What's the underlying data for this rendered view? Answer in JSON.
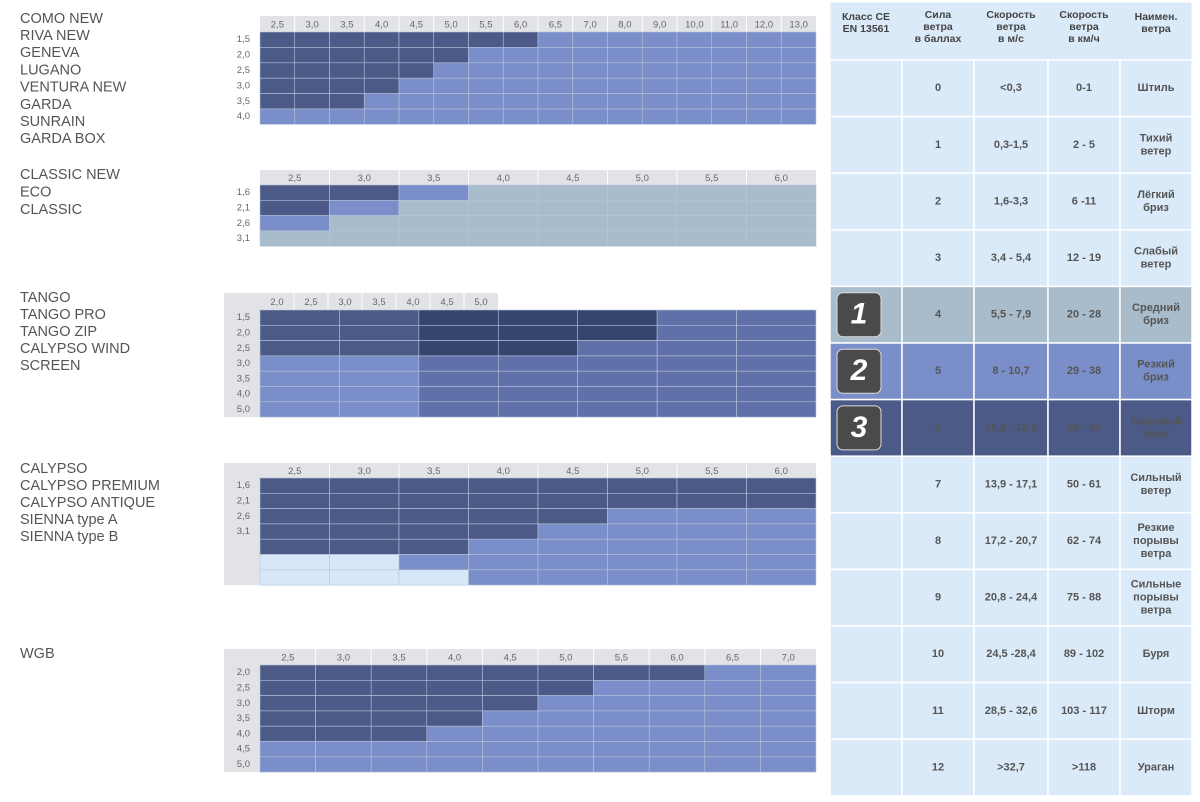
{
  "grids": [
    {
      "names": [
        "COMO NEW",
        "RIVA NEW",
        "GENEVA",
        "LUGANO",
        "VENTURA NEW",
        "GARDA",
        "SUNRAIN",
        "GARDA BOX"
      ],
      "columns": [
        "2,5",
        "3,0",
        "3,5",
        "4,0",
        "4,5",
        "5,0",
        "5,5",
        "6,0",
        "6,5",
        "7,0",
        "8,0",
        "9,0",
        "10,0",
        "11,0",
        "12,0",
        "13,0"
      ],
      "rows": [
        "1,5",
        "2,0",
        "2,5",
        "3,0",
        "3,5",
        "4,0"
      ],
      "cells": [
        [
          "#4b5a86",
          "#4b5a86",
          "#4b5a86",
          "#4b5a86",
          "#4b5a86",
          "#4b5a86",
          "#4b5a86",
          "#4b5a86",
          "#7a8fc9",
          "#7a8fc9",
          "#7a8fc9",
          "#7a8fc9",
          "#7a8fc9",
          "#7a8fc9",
          "#7a8fc9",
          "#7a8fc9"
        ],
        [
          "#4b5a86",
          "#4b5a86",
          "#4b5a86",
          "#4b5a86",
          "#4b5a86",
          "#4b5a86",
          "#7a8fc9",
          "#7a8fc9",
          "#7a8fc9",
          "#7a8fc9",
          "#7a8fc9",
          "#7a8fc9",
          "#7a8fc9",
          "#7a8fc9",
          "#7a8fc9",
          "#7a8fc9"
        ],
        [
          "#4b5a86",
          "#4b5a86",
          "#4b5a86",
          "#4b5a86",
          "#4b5a86",
          "#7a8fc9",
          "#7a8fc9",
          "#7a8fc9",
          "#7a8fc9",
          "#7a8fc9",
          "#7a8fc9",
          "#7a8fc9",
          "#7a8fc9",
          "#7a8fc9",
          "#7a8fc9",
          "#7a8fc9"
        ],
        [
          "#4b5a86",
          "#4b5a86",
          "#4b5a86",
          "#4b5a86",
          "#7a8fc9",
          "#7a8fc9",
          "#7a8fc9",
          "#7a8fc9",
          "#7a8fc9",
          "#7a8fc9",
          "#7a8fc9",
          "#7a8fc9",
          "#7a8fc9",
          "#7a8fc9",
          "#7a8fc9",
          "#7a8fc9"
        ],
        [
          "#4b5a86",
          "#4b5a86",
          "#4b5a86",
          "#7a8fc9",
          "#7a8fc9",
          "#7a8fc9",
          "#7a8fc9",
          "#7a8fc9",
          "#7a8fc9",
          "#7a8fc9",
          "#7a8fc9",
          "#7a8fc9",
          "#7a8fc9",
          "#7a8fc9",
          "#7a8fc9",
          "#7a8fc9"
        ],
        [
          "#7a8fc9",
          "#7a8fc9",
          "#7a8fc9",
          "#7a8fc9",
          "#7a8fc9",
          "#7a8fc9",
          "#7a8fc9",
          "#7a8fc9",
          "#7a8fc9",
          "#7a8fc9",
          "#7a8fc9",
          "#7a8fc9",
          "#7a8fc9",
          "#7a8fc9",
          "#7a8fc9",
          "#7a8fc9"
        ]
      ]
    },
    {
      "names": [
        "CLASSIC NEW",
        "ECO",
        "CLASSIC"
      ],
      "columns": [
        "2,5",
        "3,0",
        "3,5",
        "4,0",
        "4,5",
        "5,0",
        "5,5",
        "6,0"
      ],
      "rows": [
        "1,6",
        "2,1",
        "2,6",
        "3,1"
      ],
      "cells": [
        [
          "#4b5a86",
          "#4b5a86",
          "#7a8fc9",
          "#a9bccb",
          "#a9bccb",
          "#a9bccb",
          "#a9bccb",
          "#a9bccb"
        ],
        [
          "#4b5a86",
          "#7a8fc9",
          "#a9bccb",
          "#a9bccb",
          "#a9bccb",
          "#a9bccb",
          "#a9bccb",
          "#a9bccb"
        ],
        [
          "#7a8fc9",
          "#a9bccb",
          "#a9bccb",
          "#a9bccb",
          "#a9bccb",
          "#a9bccb",
          "#a9bccb",
          "#a9bccb"
        ],
        [
          "#a9bccb",
          "#a9bccb",
          "#a9bccb",
          "#a9bccb",
          "#a9bccb",
          "#a9bccb",
          "#a9bccb",
          "#a9bccb"
        ]
      ]
    },
    {
      "names": [
        "TANGO",
        "TANGO PRO",
        "TANGO ZIP",
        "CALYPSO WIND",
        "SCREEN"
      ],
      "columns": [
        "2,0",
        "2,5",
        "3,0",
        "3,5",
        "4,0",
        "4,5",
        "5,0"
      ],
      "rows": [
        "1,5",
        "2,0",
        "2,5",
        "3,0",
        "3,5",
        "4,0",
        "5,0"
      ],
      "cells": [
        [
          "#4b5a86",
          "#4b5a86",
          "#34456e",
          "#34456e",
          "#34456e",
          "#5f71a8",
          "#5f71a8"
        ],
        [
          "#4b5a86",
          "#4b5a86",
          "#34456e",
          "#34456e",
          "#34456e",
          "#5f71a8",
          "#5f71a8"
        ],
        [
          "#4b5a86",
          "#4b5a86",
          "#34456e",
          "#34456e",
          "#5f71a8",
          "#5f71a8",
          "#5f71a8"
        ],
        [
          "#7a8fc9",
          "#7a8fc9",
          "#5f71a8",
          "#5f71a8",
          "#5f71a8",
          "#5f71a8",
          "#5f71a8"
        ],
        [
          "#7a8fc9",
          "#7a8fc9",
          "#5f71a8",
          "#5f71a8",
          "#5f71a8",
          "#5f71a8",
          "#5f71a8"
        ],
        [
          "#7a8fc9",
          "#7a8fc9",
          "#5f71a8",
          "#5f71a8",
          "#5f71a8",
          "#5f71a8",
          "#5f71a8"
        ],
        [
          "#7a8fc9",
          "#7a8fc9",
          "#5f71a8",
          "#5f71a8",
          "#5f71a8",
          "#5f71a8",
          "#5f71a8"
        ]
      ]
    },
    {
      "names": [
        "CALYPSO",
        "CALYPSO PREMIUM",
        "CALYPSO ANTIQUE",
        "SIENNA type A",
        "SIENNA type B"
      ],
      "columns": [
        "2,5",
        "3,0",
        "3,5",
        "4,0",
        "4,5",
        "5,0",
        "5,5",
        "6,0"
      ],
      "rows": [
        "1,6",
        "2,1",
        "2,6",
        "3,1",
        null,
        null,
        null
      ],
      "cells": [
        [
          "#4b5a86",
          "#4b5a86",
          "#4b5a86",
          "#4b5a86",
          "#4b5a86",
          "#4b5a86",
          "#4b5a86",
          "#4b5a86"
        ],
        [
          "#4b5a86",
          "#4b5a86",
          "#4b5a86",
          "#4b5a86",
          "#4b5a86",
          "#4b5a86",
          "#4b5a86",
          "#4b5a86"
        ],
        [
          "#4b5a86",
          "#4b5a86",
          "#4b5a86",
          "#4b5a86",
          "#4b5a86",
          "#7a8fc9",
          "#7a8fc9",
          "#7a8fc9"
        ],
        [
          "#4b5a86",
          "#4b5a86",
          "#4b5a86",
          "#4b5a86",
          "#7a8fc9",
          "#7a8fc9",
          "#7a8fc9",
          "#7a8fc9"
        ],
        [
          "#4b5a86",
          "#4b5a86",
          "#4b5a86",
          "#7a8fc9",
          "#7a8fc9",
          "#7a8fc9",
          "#7a8fc9",
          "#7a8fc9"
        ],
        [
          "#d6e8f7",
          "#d6e8f7",
          "#7a8fc9",
          "#7a8fc9",
          "#7a8fc9",
          "#7a8fc9",
          "#7a8fc9",
          "#7a8fc9"
        ],
        [
          "#d6e8f7",
          "#d6e8f7",
          "#d6e8f7",
          "#7a8fc9",
          "#7a8fc9",
          "#7a8fc9",
          "#7a8fc9",
          "#7a8fc9"
        ]
      ]
    },
    {
      "names": [
        "WGB"
      ],
      "columns": [
        "2,5",
        "3,0",
        "3,5",
        "4,0",
        "4,5",
        "5,0",
        "5,5",
        "6,0",
        "6,5",
        "7,0"
      ],
      "rows": [
        "2,0",
        "2,5",
        "3,0",
        "3,5",
        "4,0",
        "4,5",
        "5,0"
      ],
      "cells": [
        [
          "#4b5a86",
          "#4b5a86",
          "#4b5a86",
          "#4b5a86",
          "#4b5a86",
          "#4b5a86",
          "#4b5a86",
          "#4b5a86",
          "#7a8fc9",
          "#7a8fc9"
        ],
        [
          "#4b5a86",
          "#4b5a86",
          "#4b5a86",
          "#4b5a86",
          "#4b5a86",
          "#4b5a86",
          "#7a8fc9",
          "#7a8fc9",
          "#7a8fc9",
          "#7a8fc9"
        ],
        [
          "#4b5a86",
          "#4b5a86",
          "#4b5a86",
          "#4b5a86",
          "#4b5a86",
          "#7a8fc9",
          "#7a8fc9",
          "#7a8fc9",
          "#7a8fc9",
          "#7a8fc9"
        ],
        [
          "#4b5a86",
          "#4b5a86",
          "#4b5a86",
          "#4b5a86",
          "#7a8fc9",
          "#7a8fc9",
          "#7a8fc9",
          "#7a8fc9",
          "#7a8fc9",
          "#7a8fc9"
        ],
        [
          "#4b5a86",
          "#4b5a86",
          "#4b5a86",
          "#7a8fc9",
          "#7a8fc9",
          "#7a8fc9",
          "#7a8fc9",
          "#7a8fc9",
          "#7a8fc9",
          "#7a8fc9"
        ],
        [
          "#7a8fc9",
          "#7a8fc9",
          "#7a8fc9",
          "#7a8fc9",
          "#7a8fc9",
          "#7a8fc9",
          "#7a8fc9",
          "#7a8fc9",
          "#7a8fc9",
          "#7a8fc9"
        ],
        [
          "#7a8fc9",
          "#7a8fc9",
          "#7a8fc9",
          "#7a8fc9",
          "#7a8fc9",
          "#7a8fc9",
          "#7a8fc9",
          "#7a8fc9",
          "#7a8fc9",
          "#7a8fc9"
        ]
      ]
    }
  ],
  "table": {
    "header": [
      [
        "Класс CE",
        "EN 13561"
      ],
      [
        "Сила",
        "ветра",
        "в баллах"
      ],
      [
        "Скорость",
        "ветра",
        "в м/с"
      ],
      [
        "Скорость",
        "ветра",
        "в км/ч"
      ],
      [
        "Наимен.",
        "ветра"
      ]
    ],
    "rows": [
      {
        "force": "0",
        "ms": "<0,3",
        "kmh": "0-1",
        "name": [
          "Штиль"
        ],
        "color": "#dbeaf8"
      },
      {
        "force": "1",
        "ms": "0,3-1,5",
        "kmh": "2 - 5",
        "name": [
          "Тихий",
          "ветер"
        ],
        "color": "#dbeaf8"
      },
      {
        "force": "2",
        "ms": "1,6-3,3",
        "kmh": "6 -11",
        "name": [
          "Лёгкий",
          "бриз"
        ],
        "color": "#dbeaf8"
      },
      {
        "force": "3",
        "ms": "3,4 - 5,4",
        "kmh": "12 - 19",
        "name": [
          "Слабый",
          "ветер"
        ],
        "color": "#dbeaf8"
      },
      {
        "class": "1",
        "force": "4",
        "ms": "5,5 - 7,9",
        "kmh": "20 - 28",
        "name": [
          "Средний",
          "бриз"
        ],
        "color": "#a9bccb"
      },
      {
        "class": "2",
        "force": "5",
        "ms": "8 - 10,7",
        "kmh": "29 - 38",
        "name": [
          "Резкий",
          "бриз"
        ],
        "color": "#7a8fc9"
      },
      {
        "class": "3",
        "force": "6",
        "ms": "10,8 - 13,8",
        "kmh": "39 - 49",
        "name": [
          "Сильный",
          "бриз"
        ],
        "color": "#4b5a86"
      },
      {
        "force": "7",
        "ms": "13,9 - 17,1",
        "kmh": "50 - 61",
        "name": [
          "Сильный",
          "ветер"
        ],
        "color": "#dbeaf8"
      },
      {
        "force": "8",
        "ms": "17,2 - 20,7",
        "kmh": "62 - 74",
        "name": [
          "Резкие",
          "порывы",
          "ветра"
        ],
        "color": "#dbeaf8"
      },
      {
        "force": "9",
        "ms": "20,8 - 24,4",
        "kmh": "75 - 88",
        "name": [
          "Сильные",
          "порывы",
          "ветра"
        ],
        "color": "#dbeaf8"
      },
      {
        "force": "10",
        "ms": "24,5 -28,4",
        "kmh": "89 - 102",
        "name": [
          "Буря"
        ],
        "color": "#dbeaf8"
      },
      {
        "force": "11",
        "ms": "28,5 - 32,6",
        "kmh": "103 - 117",
        "name": [
          "Шторм"
        ],
        "color": "#dbeaf8"
      },
      {
        "force": "12",
        "ms": ">32,7",
        "kmh": ">118",
        "name": [
          "Ураган"
        ],
        "color": "#dbeaf8"
      }
    ]
  }
}
